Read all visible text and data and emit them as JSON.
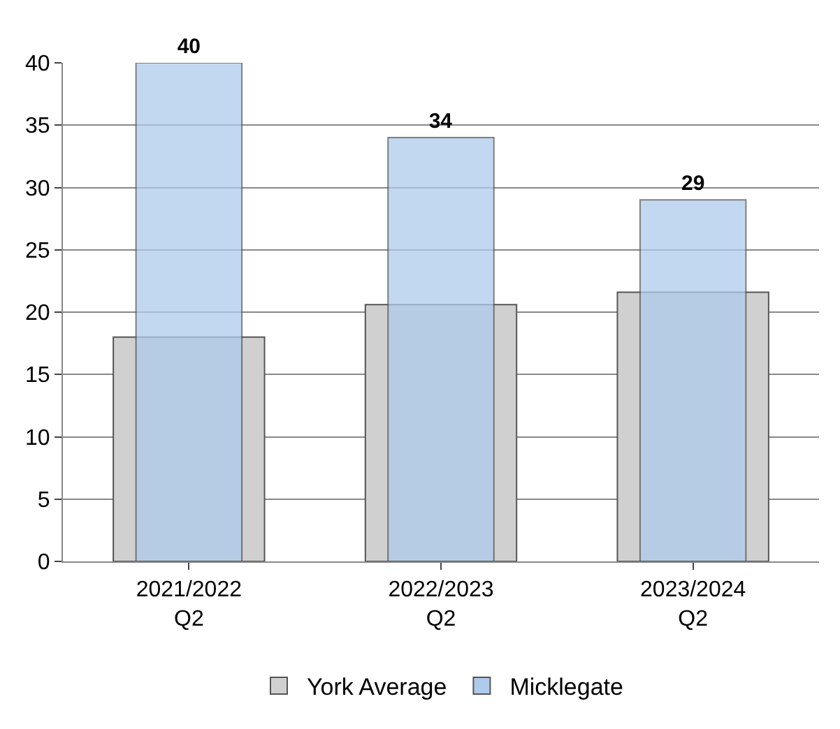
{
  "chart_data": {
    "type": "bar",
    "categories": [
      "2021/2022\nQ2",
      "2022/2023\nQ2",
      "2023/2024\nQ2"
    ],
    "series": [
      {
        "name": "York Average",
        "color": "#d0d0d0",
        "values": [
          18,
          20.6,
          21.6
        ]
      },
      {
        "name": "Micklegate",
        "color": "#aecbeb",
        "values": [
          40,
          34,
          29
        ],
        "value_labels": [
          "40",
          "34",
          "29"
        ]
      }
    ],
    "ylim": [
      0,
      40
    ],
    "yticks": [
      0,
      5,
      10,
      15,
      20,
      25,
      30,
      35,
      40
    ],
    "grid": "y",
    "legend": "bottom"
  }
}
